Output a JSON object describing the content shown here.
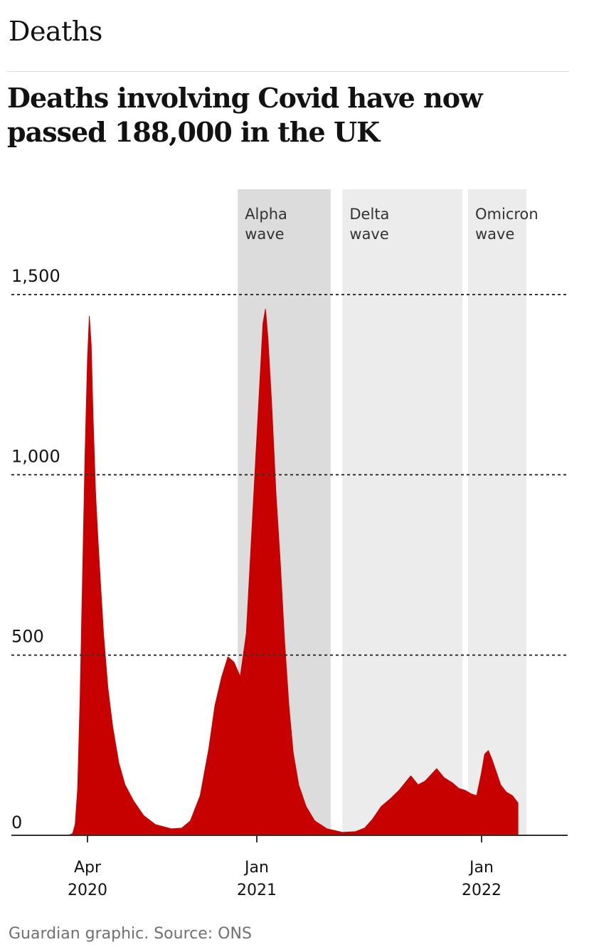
{
  "section": "Deaths",
  "headline": "Deaths involving Covid have now passed 188,000 in the UK",
  "source": "Guardian graphic. Source: ONS",
  "colors": {
    "series": "#c70000",
    "alpha_band": "#dcdcdc",
    "delta_band": "#ececec",
    "omicron_band": "#ececec",
    "text": "#121212",
    "source_text": "#707070"
  },
  "chart_data": {
    "type": "area",
    "title": "",
    "xlabel": "",
    "ylabel": "",
    "ylim": [
      0,
      1500
    ],
    "grid": true,
    "y_ticks": [
      {
        "value": 0,
        "label": "0"
      },
      {
        "value": 500,
        "label": "500"
      },
      {
        "value": 1000,
        "label": "1,000"
      },
      {
        "value": 1500,
        "label": "1,500"
      }
    ],
    "x_ticks": [
      {
        "date": "2020-04-01",
        "line1": "Apr",
        "line2": "2020"
      },
      {
        "date": "2021-01-01",
        "line1": "Jan",
        "line2": "2021"
      },
      {
        "date": "2022-01-01",
        "line1": "Jan",
        "line2": "2022"
      }
    ],
    "bands": [
      {
        "id": "alpha",
        "line1": "Alpha",
        "line2": "wave",
        "start": "2020-12-01",
        "end": "2021-05-01"
      },
      {
        "id": "delta",
        "line1": "Delta",
        "line2": "wave",
        "start": "2021-05-20",
        "end": "2021-12-01"
      },
      {
        "id": "omicron",
        "line1": "Omicron",
        "line2": "wave",
        "start": "2021-12-10",
        "end": "2022-03-15"
      }
    ],
    "series": [
      {
        "points": [
          [
            "2020-03-01",
            0
          ],
          [
            "2020-03-08",
            5
          ],
          [
            "2020-03-12",
            30
          ],
          [
            "2020-03-16",
            130
          ],
          [
            "2020-03-20",
            380
          ],
          [
            "2020-03-24",
            720
          ],
          [
            "2020-03-28",
            1050
          ],
          [
            "2020-04-01",
            1320
          ],
          [
            "2020-04-04",
            1440
          ],
          [
            "2020-04-07",
            1360
          ],
          [
            "2020-04-10",
            1160
          ],
          [
            "2020-04-14",
            950
          ],
          [
            "2020-04-18",
            820
          ],
          [
            "2020-04-22",
            700
          ],
          [
            "2020-04-27",
            560
          ],
          [
            "2020-05-04",
            410
          ],
          [
            "2020-05-12",
            300
          ],
          [
            "2020-05-22",
            200
          ],
          [
            "2020-06-01",
            140
          ],
          [
            "2020-06-15",
            95
          ],
          [
            "2020-07-01",
            55
          ],
          [
            "2020-07-20",
            30
          ],
          [
            "2020-08-15",
            18
          ],
          [
            "2020-09-01",
            20
          ],
          [
            "2020-09-15",
            40
          ],
          [
            "2020-10-01",
            110
          ],
          [
            "2020-10-15",
            240
          ],
          [
            "2020-10-25",
            360
          ],
          [
            "2020-11-05",
            440
          ],
          [
            "2020-11-15",
            495
          ],
          [
            "2020-11-25",
            480
          ],
          [
            "2020-12-05",
            440
          ],
          [
            "2020-12-15",
            560
          ],
          [
            "2020-12-25",
            880
          ],
          [
            "2021-01-05",
            1230
          ],
          [
            "2021-01-11",
            1420
          ],
          [
            "2021-01-15",
            1460
          ],
          [
            "2021-01-19",
            1380
          ],
          [
            "2021-01-25",
            1200
          ],
          [
            "2021-02-01",
            950
          ],
          [
            "2021-02-08",
            760
          ],
          [
            "2021-02-15",
            540
          ],
          [
            "2021-02-22",
            360
          ],
          [
            "2021-03-01",
            230
          ],
          [
            "2021-03-10",
            140
          ],
          [
            "2021-03-22",
            80
          ],
          [
            "2021-04-05",
            40
          ],
          [
            "2021-04-25",
            18
          ],
          [
            "2021-05-20",
            8
          ],
          [
            "2021-06-10",
            10
          ],
          [
            "2021-06-25",
            20
          ],
          [
            "2021-07-08",
            45
          ],
          [
            "2021-07-22",
            80
          ],
          [
            "2021-08-05",
            100
          ],
          [
            "2021-08-20",
            125
          ],
          [
            "2021-09-01",
            150
          ],
          [
            "2021-09-08",
            165
          ],
          [
            "2021-09-20",
            140
          ],
          [
            "2021-10-01",
            150
          ],
          [
            "2021-10-12",
            170
          ],
          [
            "2021-10-20",
            185
          ],
          [
            "2021-11-01",
            160
          ],
          [
            "2021-11-15",
            145
          ],
          [
            "2021-11-25",
            130
          ],
          [
            "2021-12-05",
            125
          ],
          [
            "2021-12-15",
            115
          ],
          [
            "2021-12-24",
            110
          ],
          [
            "2022-01-01",
            175
          ],
          [
            "2022-01-06",
            225
          ],
          [
            "2022-01-12",
            235
          ],
          [
            "2022-01-18",
            210
          ],
          [
            "2022-01-25",
            175
          ],
          [
            "2022-02-01",
            140
          ],
          [
            "2022-02-10",
            120
          ],
          [
            "2022-02-20",
            110
          ],
          [
            "2022-03-01",
            90
          ]
        ]
      }
    ]
  }
}
